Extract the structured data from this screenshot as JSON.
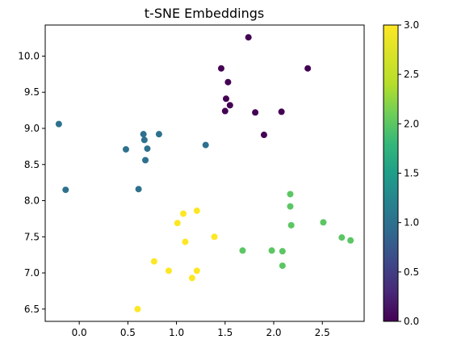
{
  "chart_data": {
    "type": "scatter",
    "title": "t-SNE Embeddings",
    "xlabel": "",
    "ylabel": "",
    "xlim": [
      -0.35,
      2.93
    ],
    "ylim": [
      6.33,
      10.43
    ],
    "xticks": [
      "0.0",
      "0.5",
      "1.0",
      "1.5",
      "2.0",
      "2.5"
    ],
    "yticks": [
      "6.5",
      "7.0",
      "7.5",
      "8.0",
      "8.5",
      "9.0",
      "9.5",
      "10.0"
    ],
    "colorbar": {
      "range": [
        0,
        3
      ],
      "ticks": [
        "0.0",
        "0.5",
        "1.0",
        "1.5",
        "2.0",
        "2.5",
        "3.0"
      ],
      "colormap": "viridis"
    },
    "grid": false,
    "points": [
      {
        "x": 1.74,
        "y": 10.26,
        "c": 0
      },
      {
        "x": 1.46,
        "y": 9.83,
        "c": 0
      },
      {
        "x": 2.35,
        "y": 9.83,
        "c": 0
      },
      {
        "x": 1.53,
        "y": 9.64,
        "c": 0
      },
      {
        "x": 1.51,
        "y": 9.41,
        "c": 0
      },
      {
        "x": 1.55,
        "y": 9.32,
        "c": 0
      },
      {
        "x": 1.5,
        "y": 9.24,
        "c": 0
      },
      {
        "x": 1.81,
        "y": 9.22,
        "c": 0
      },
      {
        "x": 2.08,
        "y": 9.23,
        "c": 0
      },
      {
        "x": 1.9,
        "y": 8.91,
        "c": 0
      },
      {
        "x": -0.21,
        "y": 9.06,
        "c": 1
      },
      {
        "x": 0.66,
        "y": 8.92,
        "c": 1
      },
      {
        "x": 0.82,
        "y": 8.92,
        "c": 1
      },
      {
        "x": 0.67,
        "y": 8.84,
        "c": 1
      },
      {
        "x": 1.3,
        "y": 8.77,
        "c": 1
      },
      {
        "x": 0.7,
        "y": 8.72,
        "c": 1
      },
      {
        "x": 0.48,
        "y": 8.71,
        "c": 1
      },
      {
        "x": 0.68,
        "y": 8.56,
        "c": 1
      },
      {
        "x": 0.61,
        "y": 8.16,
        "c": 1
      },
      {
        "x": -0.14,
        "y": 8.15,
        "c": 1
      },
      {
        "x": 2.17,
        "y": 8.09,
        "c": 2
      },
      {
        "x": 2.17,
        "y": 7.92,
        "c": 2
      },
      {
        "x": 2.51,
        "y": 7.7,
        "c": 2
      },
      {
        "x": 2.18,
        "y": 7.66,
        "c": 2
      },
      {
        "x": 2.7,
        "y": 7.49,
        "c": 2
      },
      {
        "x": 2.79,
        "y": 7.45,
        "c": 2
      },
      {
        "x": 1.68,
        "y": 7.31,
        "c": 2
      },
      {
        "x": 1.98,
        "y": 7.31,
        "c": 2
      },
      {
        "x": 2.09,
        "y": 7.3,
        "c": 2
      },
      {
        "x": 2.09,
        "y": 7.1,
        "c": 2
      },
      {
        "x": 1.21,
        "y": 7.86,
        "c": 3
      },
      {
        "x": 1.07,
        "y": 7.82,
        "c": 3
      },
      {
        "x": 1.01,
        "y": 7.69,
        "c": 3
      },
      {
        "x": 1.39,
        "y": 7.5,
        "c": 3
      },
      {
        "x": 1.09,
        "y": 7.43,
        "c": 3
      },
      {
        "x": 0.77,
        "y": 7.16,
        "c": 3
      },
      {
        "x": 0.92,
        "y": 7.03,
        "c": 3
      },
      {
        "x": 1.21,
        "y": 7.03,
        "c": 3
      },
      {
        "x": 1.16,
        "y": 6.93,
        "c": 3
      },
      {
        "x": 0.6,
        "y": 6.5,
        "c": 3
      }
    ]
  }
}
